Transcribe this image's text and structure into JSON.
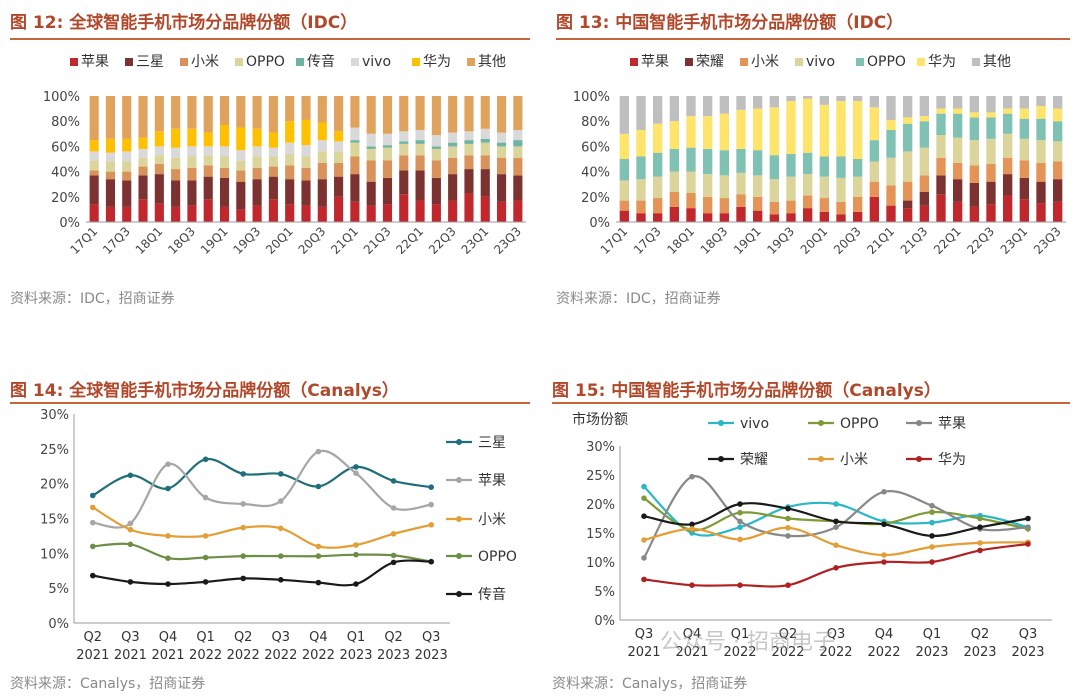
{
  "colors": {
    "title": "#b0492c",
    "rule": "#c8643c",
    "source": "#8a8a8a"
  },
  "watermark": {
    "text": "公众号 · 招商电子"
  },
  "chart_data": [
    {
      "id": "fig12",
      "type": "bar",
      "stacked": true,
      "title": "图 12: 全球智能手机市场分品牌份额（IDC）",
      "source": "资料来源：IDC，招商证券",
      "categories": [
        "17Q1",
        "17Q2",
        "17Q3",
        "17Q4",
        "18Q1",
        "18Q2",
        "18Q3",
        "18Q4",
        "19Q1",
        "19Q2",
        "19Q3",
        "19Q4",
        "20Q1",
        "20Q2",
        "20Q3",
        "20Q4",
        "21Q1",
        "21Q2",
        "21Q3",
        "21Q4",
        "22Q1",
        "22Q2",
        "22Q3",
        "22Q4",
        "23Q1",
        "23Q2",
        "23Q3"
      ],
      "tick_labels": [
        "17Q1",
        "17Q3",
        "18Q1",
        "18Q3",
        "19Q1",
        "19Q3",
        "20Q1",
        "20Q3",
        "21Q1",
        "21Q3",
        "22Q1",
        "22Q3",
        "23Q1",
        "23Q3"
      ],
      "yticks": [
        "0%",
        "20%",
        "40%",
        "60%",
        "80%",
        "100%"
      ],
      "ylim": [
        0,
        100
      ],
      "series": [
        {
          "name": "苹果",
          "color": "#c0282d",
          "values": [
            14,
            12,
            12,
            18,
            15,
            12,
            13,
            18,
            12,
            10,
            13,
            18,
            14,
            13,
            12,
            20,
            16,
            13,
            14,
            22,
            17,
            14,
            17,
            23,
            20,
            16,
            17
          ]
        },
        {
          "name": "三星",
          "color": "#7d3232",
          "values": [
            23,
            22,
            21,
            19,
            23,
            21,
            20,
            18,
            23,
            22,
            21,
            18,
            20,
            20,
            22,
            16,
            22,
            19,
            21,
            19,
            24,
            21,
            21,
            19,
            22,
            22,
            20
          ]
        },
        {
          "name": "小米",
          "color": "#d9935a",
          "values": [
            4,
            6,
            7,
            7,
            8,
            9,
            10,
            9,
            8,
            9,
            9,
            8,
            11,
            10,
            13,
            11,
            14,
            17,
            14,
            12,
            12,
            14,
            13,
            11,
            11,
            13,
            14
          ]
        },
        {
          "name": "OPPO",
          "color": "#dcd59b",
          "values": [
            8,
            8,
            8,
            7,
            7,
            9,
            9,
            8,
            9,
            8,
            9,
            8,
            9,
            9,
            9,
            9,
            11,
            9,
            10,
            9,
            9,
            9,
            9,
            9,
            10,
            9,
            9
          ]
        },
        {
          "name": "传音",
          "color": "#6fb3a2",
          "values": [
            0,
            0,
            0,
            0,
            0,
            0,
            0,
            0,
            0,
            0,
            0,
            0,
            0,
            0,
            0,
            0,
            2,
            2,
            2,
            2,
            3,
            2,
            3,
            3,
            3,
            3,
            5
          ]
        },
        {
          "name": "vivo",
          "color": "#d9d9d9",
          "values": [
            7,
            7,
            8,
            7,
            7,
            8,
            8,
            7,
            8,
            8,
            8,
            7,
            9,
            9,
            9,
            8,
            10,
            10,
            9,
            8,
            8,
            9,
            8,
            7,
            8,
            8,
            8
          ]
        },
        {
          "name": "华为",
          "color": "#ffc000",
          "values": [
            9,
            11,
            10,
            9,
            12,
            15,
            14,
            11,
            17,
            18,
            14,
            12,
            17,
            20,
            14,
            8,
            0,
            0,
            0,
            0,
            0,
            0,
            0,
            0,
            0,
            0,
            0
          ]
        },
        {
          "name": "其他",
          "color": "#e0a35e",
          "values": [
            35,
            34,
            34,
            33,
            28,
            26,
            26,
            29,
            23,
            25,
            26,
            29,
            20,
            19,
            21,
            28,
            25,
            30,
            30,
            28,
            27,
            31,
            29,
            28,
            26,
            29,
            27
          ]
        }
      ]
    },
    {
      "id": "fig13",
      "type": "bar",
      "stacked": true,
      "title": "图 13: 中国智能手机市场分品牌份额（IDC）",
      "source": "资料来源：IDC，招商证券",
      "categories": [
        "17Q1",
        "17Q2",
        "17Q3",
        "17Q4",
        "18Q1",
        "18Q2",
        "18Q3",
        "18Q4",
        "19Q1",
        "19Q2",
        "19Q3",
        "19Q4",
        "20Q1",
        "20Q2",
        "20Q3",
        "20Q4",
        "21Q1",
        "21Q2",
        "21Q3",
        "21Q4",
        "22Q1",
        "22Q2",
        "22Q3",
        "22Q4",
        "23Q1",
        "23Q2",
        "23Q3"
      ],
      "tick_labels": [
        "17Q1",
        "17Q3",
        "18Q1",
        "18Q3",
        "19Q1",
        "19Q3",
        "20Q1",
        "20Q3",
        "21Q1",
        "21Q3",
        "22Q1",
        "22Q3",
        "23Q1",
        "23Q3"
      ],
      "yticks": [
        "0%",
        "20%",
        "40%",
        "60%",
        "80%",
        "100%"
      ],
      "ylim": [
        0,
        100
      ],
      "series": [
        {
          "name": "苹果",
          "color": "#c0282d",
          "values": [
            9,
            7,
            7,
            12,
            11,
            7,
            7,
            12,
            9,
            6,
            7,
            11,
            8,
            6,
            8,
            20,
            13,
            11,
            13,
            22,
            16,
            12,
            14,
            21,
            18,
            15,
            16
          ]
        },
        {
          "name": "荣耀",
          "color": "#7d3232",
          "values": [
            0,
            0,
            0,
            0,
            0,
            0,
            0,
            0,
            0,
            0,
            0,
            0,
            0,
            0,
            0,
            0,
            0,
            6,
            11,
            15,
            18,
            19,
            18,
            17,
            17,
            17,
            18
          ]
        },
        {
          "name": "小米",
          "color": "#e39456",
          "values": [
            8,
            10,
            12,
            12,
            12,
            13,
            12,
            10,
            11,
            10,
            10,
            10,
            11,
            10,
            12,
            12,
            16,
            15,
            13,
            14,
            13,
            14,
            14,
            13,
            14,
            15,
            14
          ]
        },
        {
          "name": "vivo",
          "color": "#dcd59b",
          "values": [
            16,
            17,
            17,
            16,
            17,
            18,
            18,
            17,
            17,
            18,
            19,
            17,
            17,
            19,
            16,
            16,
            22,
            24,
            22,
            18,
            20,
            20,
            20,
            19,
            17,
            18,
            16
          ]
        },
        {
          "name": "OPPO",
          "color": "#7fc1b3",
          "values": [
            17,
            18,
            19,
            18,
            19,
            20,
            20,
            19,
            20,
            19,
            18,
            17,
            16,
            17,
            14,
            17,
            22,
            22,
            21,
            17,
            19,
            18,
            17,
            16,
            16,
            17,
            16
          ]
        },
        {
          "name": "华为",
          "color": "#ffe46b",
          "values": [
            20,
            21,
            23,
            22,
            25,
            26,
            29,
            31,
            33,
            38,
            42,
            43,
            41,
            44,
            46,
            26,
            8,
            5,
            4,
            4,
            4,
            4,
            4,
            4,
            8,
            10,
            10
          ]
        },
        {
          "name": "其他",
          "color": "#bfbfbf",
          "values": [
            30,
            27,
            22,
            20,
            16,
            16,
            14,
            11,
            10,
            9,
            4,
            2,
            7,
            4,
            4,
            9,
            19,
            17,
            16,
            10,
            10,
            13,
            13,
            10,
            10,
            8,
            10
          ]
        }
      ]
    },
    {
      "id": "fig14",
      "type": "line",
      "title": "图 14: 全球智能手机市场分品牌份额（Canalys）",
      "source": "资料来源：Canalys，招商证券",
      "categories": [
        "Q2 2021",
        "Q3 2021",
        "Q4 2021",
        "Q1 2022",
        "Q2 2022",
        "Q3 2022",
        "Q4 2022",
        "Q1 2023",
        "Q2 2023",
        "Q3 2023"
      ],
      "ylim": [
        0,
        30
      ],
      "yticks": [
        "0%",
        "5%",
        "10%",
        "15%",
        "20%",
        "25%",
        "30%"
      ],
      "series": [
        {
          "name": "三星",
          "color": "#1f6e7c",
          "values": [
            18.3,
            21.2,
            19.3,
            23.5,
            21.4,
            21.4,
            19.6,
            22.4,
            20.4,
            19.5
          ]
        },
        {
          "name": "苹果",
          "color": "#a6a6a6",
          "values": [
            14.4,
            14.3,
            22.8,
            18.0,
            17.1,
            17.5,
            24.6,
            21.5,
            16.5,
            17.0
          ]
        },
        {
          "name": "小米",
          "color": "#e39e35",
          "values": [
            16.6,
            13.4,
            12.5,
            12.5,
            13.7,
            13.6,
            11.0,
            11.2,
            12.8,
            14.1
          ]
        },
        {
          "name": "OPPO",
          "color": "#6e8e45",
          "values": [
            11.0,
            11.3,
            9.3,
            9.4,
            9.6,
            9.6,
            9.6,
            9.8,
            9.7,
            8.8
          ]
        },
        {
          "name": "传音",
          "color": "#1a1a1a",
          "values": [
            6.8,
            5.9,
            5.6,
            5.9,
            6.4,
            6.2,
            5.8,
            5.6,
            8.7,
            8.8
          ]
        }
      ]
    },
    {
      "id": "fig15",
      "type": "line",
      "title": "图 15: 中国智能手机市场分品牌份额（Canalys）",
      "source": "资料来源：Canalys，招商证券",
      "ylabel": "市场份额",
      "categories": [
        "Q3 2021",
        "Q4 2021",
        "Q1 2022",
        "Q2 2022",
        "Q3 2022",
        "Q4 2022",
        "Q1 2023",
        "Q2 2023",
        "Q3 2023"
      ],
      "ylim": [
        0,
        30
      ],
      "yticks": [
        "0%",
        "5%",
        "10%",
        "15%",
        "20%",
        "25%",
        "30%"
      ],
      "series": [
        {
          "name": "vivo",
          "color": "#29b8c4",
          "values": [
            23.0,
            15.0,
            16.0,
            19.5,
            20.0,
            17.0,
            16.8,
            18.0,
            16.0
          ]
        },
        {
          "name": "OPPO",
          "color": "#7e9b36",
          "values": [
            21.0,
            15.5,
            18.5,
            17.5,
            17.0,
            16.6,
            18.6,
            17.5,
            15.7
          ]
        },
        {
          "name": "苹果",
          "color": "#888888",
          "values": [
            10.7,
            24.7,
            17.0,
            14.5,
            16.0,
            22.1,
            19.7,
            15.7,
            16.0
          ]
        },
        {
          "name": "荣耀",
          "color": "#1a1a1a",
          "values": [
            17.9,
            16.5,
            20.0,
            19.2,
            17.0,
            16.5,
            14.5,
            16.0,
            17.5
          ]
        },
        {
          "name": "小米",
          "color": "#e39e35",
          "values": [
            13.8,
            15.7,
            13.9,
            15.9,
            12.9,
            11.2,
            12.6,
            13.3,
            13.4
          ]
        },
        {
          "name": "华为",
          "color": "#b02020",
          "values": [
            7.0,
            6.0,
            6.0,
            6.0,
            9.0,
            10.0,
            10.0,
            12.0,
            13.1
          ]
        }
      ]
    }
  ]
}
